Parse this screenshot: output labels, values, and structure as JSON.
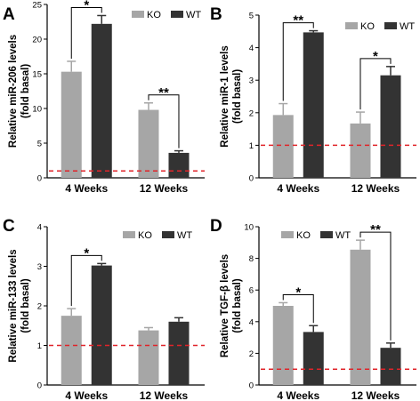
{
  "colors": {
    "ko": "#a6a6a6",
    "wt": "#333333",
    "baseline": "#e0242a"
  },
  "chart_data": [
    {
      "panel": "A",
      "type": "bar",
      "ylabel": [
        "Relative miR-206 levels",
        "(fold basal)"
      ],
      "categories": [
        "4 Weeks",
        "12 Weeks"
      ],
      "ylim": [
        0,
        25
      ],
      "yticks": [
        0,
        5,
        10,
        15,
        20,
        25
      ],
      "baseline": 1,
      "legend": [
        "KO",
        "WT"
      ],
      "series": [
        {
          "name": "KO",
          "values": [
            15.3,
            9.8
          ],
          "errors": [
            1.5,
            1.0
          ]
        },
        {
          "name": "WT",
          "values": [
            22.2,
            3.6
          ],
          "errors": [
            1.2,
            0.3
          ]
        }
      ],
      "significance": [
        "*",
        "**"
      ]
    },
    {
      "panel": "B",
      "type": "bar",
      "ylabel": [
        "Relative miR-1 levels",
        "(fold basal)"
      ],
      "categories": [
        "4 Weeks",
        "12 Weeks"
      ],
      "ylim": [
        0,
        5
      ],
      "yticks": [
        0,
        1,
        2,
        3,
        4,
        5
      ],
      "baseline": 1,
      "legend": [
        "KO",
        "WT"
      ],
      "series": [
        {
          "name": "KO",
          "values": [
            1.93,
            1.67
          ],
          "errors": [
            0.35,
            0.35
          ]
        },
        {
          "name": "WT",
          "values": [
            4.47,
            3.15
          ],
          "errors": [
            0.05,
            0.27
          ]
        }
      ],
      "significance": [
        "**",
        "*"
      ]
    },
    {
      "panel": "C",
      "type": "bar",
      "ylabel": [
        "Relative miR-133 levels",
        "(fold basal)"
      ],
      "categories": [
        "4 Weeks",
        "12 Weeks"
      ],
      "ylim": [
        0,
        4
      ],
      "yticks": [
        0,
        1,
        2,
        3,
        4
      ],
      "baseline": 1,
      "legend": [
        "KO",
        "WT"
      ],
      "series": [
        {
          "name": "KO",
          "values": [
            1.75,
            1.38
          ],
          "errors": [
            0.18,
            0.07
          ]
        },
        {
          "name": "WT",
          "values": [
            3.02,
            1.6
          ],
          "errors": [
            0.05,
            0.1
          ]
        }
      ],
      "significance": [
        "*",
        ""
      ]
    },
    {
      "panel": "D",
      "type": "bar",
      "ylabel": [
        "Relative TGF-β levels",
        "(fold basal)"
      ],
      "categories": [
        "4 Weeks",
        "12 Weeks"
      ],
      "ylim": [
        0,
        10
      ],
      "yticks": [
        0,
        2,
        4,
        6,
        8,
        10
      ],
      "baseline": 1,
      "legend": [
        "KO",
        "WT"
      ],
      "series": [
        {
          "name": "KO",
          "values": [
            5.0,
            8.55
          ],
          "errors": [
            0.2,
            0.6
          ]
        },
        {
          "name": "WT",
          "values": [
            3.35,
            2.35
          ],
          "errors": [
            0.4,
            0.3
          ]
        }
      ],
      "significance": [
        "*",
        "**"
      ]
    }
  ]
}
